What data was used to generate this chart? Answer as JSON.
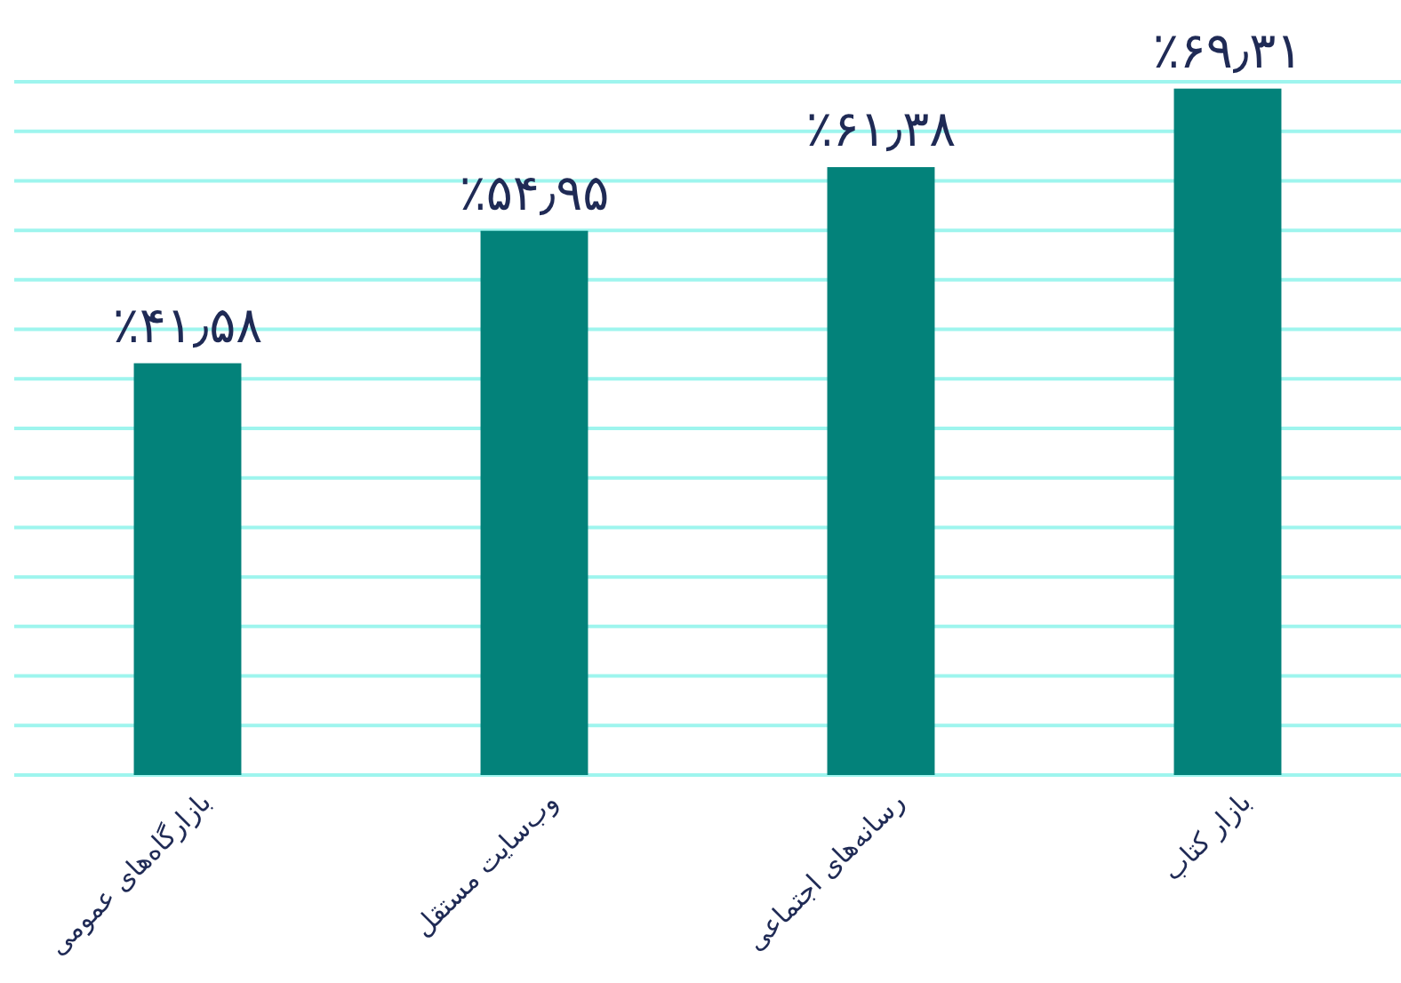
{
  "chart_data": {
    "type": "bar",
    "categories": [
      "بازارگاه‌های عمومی",
      "وب‌سایت مستقل",
      "رسانه‌های اجتماعی",
      "بازار کتاب"
    ],
    "values": [
      41.58,
      54.95,
      61.38,
      69.31
    ],
    "value_labels": [
      "٪۴۱٫۵۸",
      "٪۵۴٫۹۵",
      "٪۶۱٫۳۸",
      "٪۶۹٫۳۱"
    ],
    "color": "#03827a",
    "ylim": [
      0,
      70
    ],
    "yticks": [
      {
        "value": 0,
        "label": null
      },
      {
        "value": 5,
        "label": null
      },
      {
        "value": 10,
        "label": null
      },
      {
        "value": 15,
        "label": null
      },
      {
        "value": 20,
        "label": null
      },
      {
        "value": 25,
        "label": null
      },
      {
        "value": 30,
        "label": null
      },
      {
        "value": 35,
        "label": null
      },
      {
        "value": 40,
        "label": null
      },
      {
        "value": 45,
        "label": null
      },
      {
        "value": 50,
        "label": null
      },
      {
        "value": 55,
        "label": null
      },
      {
        "value": 60,
        "label": null
      },
      {
        "value": 65,
        "label": null
      },
      {
        "value": 70,
        "label": null
      }
    ],
    "grid": "y",
    "tick_labels": "x"
  }
}
